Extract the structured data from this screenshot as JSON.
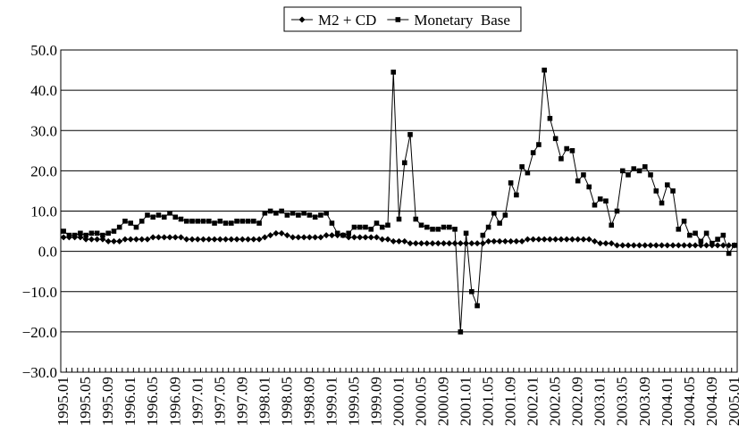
{
  "chart_data": {
    "type": "line",
    "categories": [
      "1995.01",
      null,
      null,
      null,
      "1995.05",
      null,
      null,
      null,
      "1995.09",
      null,
      null,
      null,
      "1996.01",
      null,
      null,
      null,
      "1996.05",
      null,
      null,
      null,
      "1996.09",
      null,
      null,
      null,
      "1997.01",
      null,
      null,
      null,
      "1997.05",
      null,
      null,
      null,
      "1997.09",
      null,
      null,
      null,
      "1998.01",
      null,
      null,
      null,
      "1998.05",
      null,
      null,
      null,
      "1998.09",
      null,
      null,
      null,
      "1999.01",
      null,
      null,
      null,
      "1999.05",
      null,
      null,
      null,
      "1999.09",
      null,
      null,
      null,
      "2000.01",
      null,
      null,
      null,
      "2000.05",
      null,
      null,
      null,
      "2000.09",
      null,
      null,
      null,
      "2001.01",
      null,
      null,
      null,
      "2001.05",
      null,
      null,
      null,
      "2001.09",
      null,
      null,
      null,
      "2002.01",
      null,
      null,
      null,
      "2002.05",
      null,
      null,
      null,
      "2002.09",
      null,
      null,
      null,
      "2003.01",
      null,
      null,
      null,
      "2003.05",
      null,
      null,
      null,
      "2003.09",
      null,
      null,
      null,
      "2004.01",
      null,
      null,
      null,
      "2004.05",
      null,
      null,
      null,
      "2004.09",
      null,
      null,
      null,
      "2005.01"
    ],
    "series": [
      {
        "name": "M2 + CD",
        "color": "#000000",
        "marker": "diamond",
        "values": [
          3.5,
          3.5,
          3.5,
          3.5,
          3,
          3,
          3,
          3,
          2.5,
          2.5,
          2.5,
          3,
          3,
          3,
          3,
          3,
          3.5,
          3.5,
          3.5,
          3.5,
          3.5,
          3.5,
          3,
          3,
          3,
          3,
          3,
          3,
          3,
          3,
          3,
          3,
          3,
          3,
          3,
          3,
          3.5,
          4,
          4.5,
          4.5,
          4,
          3.5,
          3.5,
          3.5,
          3.5,
          3.5,
          3.5,
          4,
          4,
          4,
          4,
          3.5,
          3.5,
          3.5,
          3.5,
          3.5,
          3.5,
          3,
          3,
          2.5,
          2.5,
          2.5,
          2,
          2,
          2,
          2,
          2,
          2,
          2,
          2,
          2,
          2,
          2,
          2,
          2,
          2,
          2.5,
          2.5,
          2.5,
          2.5,
          2.5,
          2.5,
          2.5,
          3,
          3,
          3,
          3,
          3,
          3,
          3,
          3,
          3,
          3,
          3,
          3,
          2.5,
          2,
          2,
          2,
          1.5,
          1.5,
          1.5,
          1.5,
          1.5,
          1.5,
          1.5,
          1.5,
          1.5,
          1.5,
          1.5,
          1.5,
          1.5,
          1.5,
          1.5,
          1.5,
          1.5,
          1.5,
          1.5,
          1.5,
          1.5,
          1.5
        ]
      },
      {
        "name": "Monetary  Base",
        "color": "#000000",
        "marker": "square",
        "values": [
          5,
          4,
          4,
          4.5,
          4,
          4.5,
          4.5,
          4,
          4.5,
          5,
          6,
          7.5,
          7,
          6,
          7.5,
          9,
          8.5,
          9,
          8.5,
          9.5,
          8.5,
          8,
          7.5,
          7.5,
          7.5,
          7.5,
          7.5,
          7,
          7.5,
          7,
          7,
          7.5,
          7.5,
          7.5,
          7.5,
          7,
          9.5,
          10,
          9.5,
          10,
          9,
          9.5,
          9,
          9.5,
          9,
          8.5,
          9,
          9.5,
          7,
          4.5,
          4,
          4.5,
          6,
          6,
          6,
          5.5,
          7,
          6,
          6.5,
          44.5,
          8,
          22,
          29,
          8,
          6.5,
          6,
          5.5,
          5.5,
          6,
          6,
          5.5,
          -20,
          4.5,
          -10,
          -13.5,
          4,
          6,
          9.5,
          7,
          9,
          17,
          14,
          21,
          19.5,
          24.5,
          26.5,
          45,
          33,
          28,
          23,
          25.5,
          25,
          17.5,
          19,
          16,
          11.5,
          13,
          12.5,
          6.5,
          10,
          20,
          19,
          20.5,
          20,
          21,
          19,
          15,
          12,
          16.5,
          15,
          5.5,
          7.5,
          4,
          4.5,
          2.5,
          4.5,
          2,
          3,
          4,
          -0.5,
          1.5
        ]
      }
    ],
    "ylim": [
      -30,
      50
    ],
    "yticks": [
      {
        "value": -30,
        "label": "−30.0"
      },
      {
        "value": -20,
        "label": "−20.0"
      },
      {
        "value": -10,
        "label": "−10.0"
      },
      {
        "value": 0,
        "label": "0.0"
      },
      {
        "value": 10,
        "label": "10.0"
      },
      {
        "value": 20,
        "label": "20.0"
      },
      {
        "value": 30,
        "label": "30.0"
      },
      {
        "value": 40,
        "label": "40.0"
      },
      {
        "value": 50,
        "label": "50.0"
      }
    ],
    "grid": true,
    "legend": "top"
  }
}
